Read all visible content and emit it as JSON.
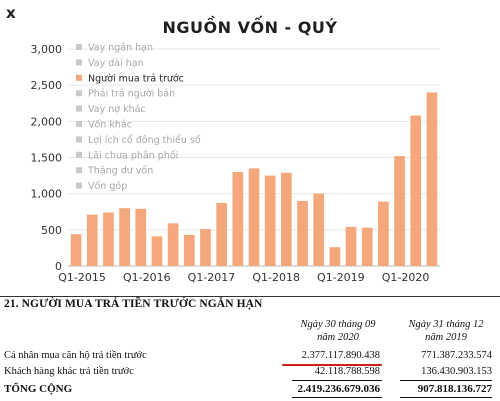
{
  "corner_mark": "x",
  "chart_data": {
    "type": "bar",
    "title": "NGUỒN VỐN - QUÝ",
    "xlabel": "",
    "ylabel": "",
    "ylim": [
      0,
      3000
    ],
    "yticks": [
      0,
      500,
      1000,
      1500,
      2000,
      2500,
      3000
    ],
    "ytick_labels": [
      "0",
      "500",
      "1,000",
      "1,500",
      "2,000",
      "2,500",
      "3,000"
    ],
    "categories": [
      "Q1-2015",
      "Q2-2015",
      "Q3-2015",
      "Q4-2015",
      "Q1-2016",
      "Q2-2016",
      "Q3-2016",
      "Q4-2016",
      "Q1-2017",
      "Q2-2017",
      "Q3-2017",
      "Q4-2017",
      "Q1-2018",
      "Q2-2018",
      "Q3-2018",
      "Q4-2018",
      "Q1-2019",
      "Q2-2019",
      "Q3-2019",
      "Q4-2019",
      "Q1-2020",
      "Q2-2020",
      "Q3-2020"
    ],
    "xtick_labels": [
      {
        "index": 0,
        "label": "Q1-2015"
      },
      {
        "index": 4,
        "label": "Q1-2016"
      },
      {
        "index": 8,
        "label": "Q1-2017"
      },
      {
        "index": 12,
        "label": "Q1-2018"
      },
      {
        "index": 16,
        "label": "Q1-2019"
      },
      {
        "index": 20,
        "label": "Q1-2020"
      }
    ],
    "series": [
      {
        "name": "Người mua trả trước",
        "values": [
          440,
          710,
          740,
          800,
          790,
          410,
          590,
          430,
          510,
          870,
          1300,
          1350,
          1250,
          1290,
          900,
          1000,
          260,
          540,
          530,
          890,
          1520,
          2080,
          2400
        ]
      }
    ],
    "bar_color": "#f4a77a",
    "grid": true,
    "legend_position": "top-left",
    "legend": [
      {
        "label": "Vay ngắn hạn",
        "color": "#c9c9c9",
        "active": false
      },
      {
        "label": "Vay dài hạn",
        "color": "#c9c9c9",
        "active": false
      },
      {
        "label": "Người mua trả trước",
        "color": "#f4a77a",
        "active": true
      },
      {
        "label": "Phải trả người bán",
        "color": "#c9c9c9",
        "active": false
      },
      {
        "label": "Vay nợ khác",
        "color": "#c9c9c9",
        "active": false
      },
      {
        "label": "Vốn khác",
        "color": "#c9c9c9",
        "active": false
      },
      {
        "label": "Lợi ích cổ đông thiểu số",
        "color": "#c9c9c9",
        "active": false
      },
      {
        "label": "Lãi chưa phân phối",
        "color": "#c9c9c9",
        "active": false
      },
      {
        "label": "Thặng dư vốn",
        "color": "#c9c9c9",
        "active": false
      },
      {
        "label": "Vốn góp",
        "color": "#c9c9c9",
        "active": false
      }
    ]
  },
  "table": {
    "section_title": "21. NGƯỜI MUA TRẢ TIỀN TRƯỚC NGẮN HẠN",
    "col1_line1": "Ngày 30 tháng 09",
    "col1_line2": "năm 2020",
    "col2_line1": "Ngày 31 tháng 12",
    "col2_line2": "năm 2019",
    "rows": [
      {
        "label": "Cá nhân mua căn hộ trả tiền trước",
        "v2020": "2.377.117.890.438",
        "v2019": "771.387.233.574"
      },
      {
        "label": "Khách hàng khác trả tiền trước",
        "v2020": "42.118.788.598",
        "v2019": "136.430.903.153"
      }
    ],
    "total_label": "TỔNG CỘNG",
    "total_2020": "2.419.236.679.036",
    "total_2019": "907.818.136.727",
    "highlight_color": "#d0201a"
  }
}
